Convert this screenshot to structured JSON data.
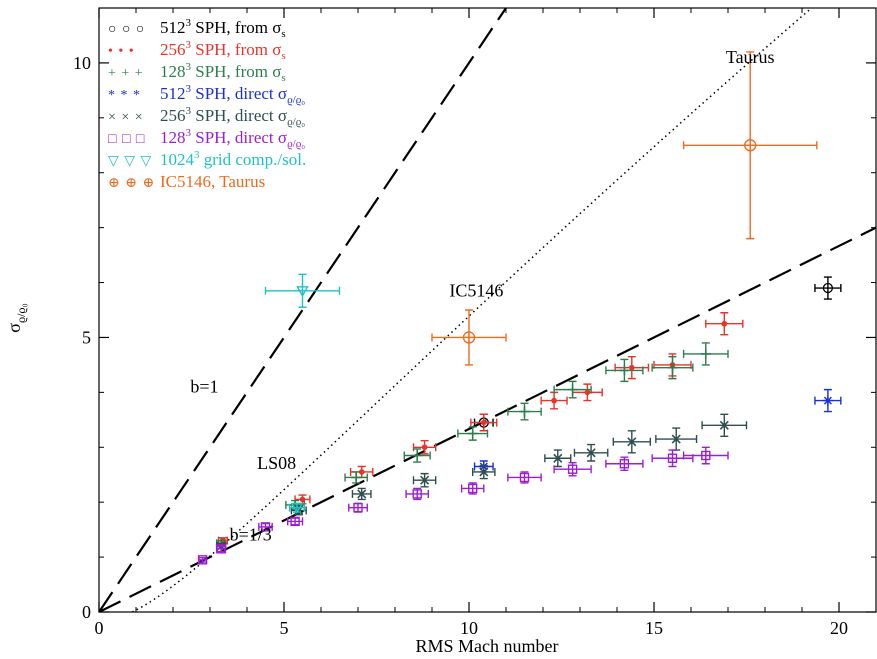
{
  "chart_data": {
    "type": "scatter",
    "xlabel": "RMS Mach number",
    "ylabel": "σ",
    "ylabel_sub": "ϱ/ϱ₀",
    "xlim": [
      0,
      21
    ],
    "ylim": [
      0,
      11
    ],
    "x_ticks": [
      0,
      5,
      10,
      15,
      20
    ],
    "y_ticks": [
      0,
      5,
      10
    ],
    "x_tick_labels": [
      "0",
      "5",
      "10",
      "15",
      "20"
    ],
    "y_tick_labels": [
      "0",
      "5",
      "10"
    ],
    "grid": false,
    "legend_position": "top-left",
    "legend": [
      {
        "symbols": "○ ○ ○",
        "text": "512",
        "sup": "3",
        "text2": " SPH, from σ",
        "sub": "s",
        "color": "#000000"
      },
      {
        "symbols": "• • •",
        "text": "256",
        "sup": "3",
        "text2": " SPH, from σ",
        "sub": "s",
        "color": "#e8322a"
      },
      {
        "symbols": "+ + +",
        "text": "128",
        "sup": "3",
        "text2": " SPH, from σ",
        "sub": "s",
        "color": "#2e7d4f"
      },
      {
        "symbols": "* * *",
        "text": "512",
        "sup": "3",
        "text2": " SPH, direct σ",
        "sub": "ϱ/ϱ₀",
        "color": "#1a2fd6"
      },
      {
        "symbols": "× × ×",
        "text": "256",
        "sup": "3",
        "text2": " SPH, direct σ",
        "sub": "ϱ/ϱ₀",
        "color": "#2f4f4f"
      },
      {
        "symbols": "□ □ □",
        "text": "128",
        "sup": "3",
        "text2": " SPH, direct σ",
        "sub": "ϱ/ϱ₀",
        "color": "#9a1fd1"
      },
      {
        "symbols": "▽ ▽ ▽",
        "text": "1024",
        "sup": "3",
        "text2": " grid comp./sol.",
        "sub": "",
        "color": "#1fc2c2"
      },
      {
        "symbols": "⊕ ⊕ ⊕",
        "text": "IC5146, Taurus",
        "sup": "",
        "text2": "",
        "sub": "",
        "color": "#f06a1e"
      }
    ],
    "annotations": [
      {
        "text": "Taurus",
        "x": 17.6,
        "y": 10.0
      },
      {
        "text": "IC5146",
        "x": 10.2,
        "y": 5.75
      },
      {
        "text": "b=1",
        "x": 2.85,
        "y": 4.0
      },
      {
        "text": "LS08",
        "x": 4.8,
        "y": 2.6
      },
      {
        "text": "b=1/3",
        "x": 4.1,
        "y": 1.3
      }
    ],
    "lines": [
      {
        "name": "b=1",
        "style": "long-dash",
        "slope": 1.0
      },
      {
        "name": "b=1/3",
        "style": "long-dash",
        "slope": 0.3333
      },
      {
        "name": "LS08",
        "style": "dotted",
        "function": "sqrt(ln(1+0.25*M^2))^2-like"
      }
    ],
    "series": [
      {
        "name": "512³ SPH, from σs",
        "marker": "circle",
        "color": "#000000",
        "points": [
          [
            19.7,
            5.9,
            0.35,
            0.2
          ],
          [
            10.4,
            3.45,
            0.25,
            0.15
          ]
        ]
      },
      {
        "name": "256³ SPH, from σs",
        "marker": "dot",
        "color": "#e8322a",
        "points": [
          [
            3.35,
            1.3,
            0.12,
            0.05
          ],
          [
            5.5,
            2.05,
            0.2,
            0.08
          ],
          [
            7.1,
            2.55,
            0.3,
            0.1
          ],
          [
            8.8,
            3.0,
            0.3,
            0.12
          ],
          [
            10.4,
            3.45,
            0.35,
            0.15
          ],
          [
            12.3,
            3.85,
            0.35,
            0.15
          ],
          [
            13.2,
            4.0,
            0.4,
            0.15
          ],
          [
            14.4,
            4.45,
            0.45,
            0.2
          ],
          [
            15.5,
            4.5,
            0.5,
            0.2
          ],
          [
            16.9,
            5.25,
            0.5,
            0.2
          ]
        ]
      },
      {
        "name": "128³ SPH, from σs",
        "marker": "plus",
        "color": "#2e7d4f",
        "points": [
          [
            3.3,
            1.25,
            0.12,
            0.05
          ],
          [
            5.3,
            1.95,
            0.25,
            0.08
          ],
          [
            6.95,
            2.45,
            0.3,
            0.1
          ],
          [
            8.6,
            2.85,
            0.35,
            0.12
          ],
          [
            10.1,
            3.25,
            0.4,
            0.12
          ],
          [
            11.5,
            3.65,
            0.45,
            0.15
          ],
          [
            12.8,
            4.05,
            0.5,
            0.15
          ],
          [
            14.2,
            4.4,
            0.5,
            0.2
          ],
          [
            15.5,
            4.45,
            0.55,
            0.2
          ],
          [
            16.4,
            4.7,
            0.6,
            0.2
          ]
        ]
      },
      {
        "name": "512³ SPH, direct σϱ/ϱ₀",
        "marker": "asterisk",
        "color": "#1a2fd6",
        "points": [
          [
            10.4,
            2.65,
            0.25,
            0.1
          ],
          [
            19.7,
            3.85,
            0.35,
            0.2
          ]
        ]
      },
      {
        "name": "256³ SPH, direct σϱ/ϱ₀",
        "marker": "cross",
        "color": "#2f4f4f",
        "points": [
          [
            3.3,
            1.2,
            0.12,
            0.05
          ],
          [
            5.4,
            1.85,
            0.2,
            0.08
          ],
          [
            7.1,
            2.15,
            0.25,
            0.1
          ],
          [
            8.8,
            2.4,
            0.3,
            0.12
          ],
          [
            10.4,
            2.55,
            0.3,
            0.12
          ],
          [
            12.4,
            2.8,
            0.35,
            0.15
          ],
          [
            13.3,
            2.9,
            0.45,
            0.15
          ],
          [
            14.4,
            3.1,
            0.5,
            0.2
          ],
          [
            15.6,
            3.15,
            0.55,
            0.2
          ],
          [
            16.9,
            3.4,
            0.6,
            0.2
          ]
        ]
      },
      {
        "name": "128³ SPH, direct σϱ/ϱ₀",
        "marker": "square",
        "color": "#9a1fd1",
        "points": [
          [
            2.8,
            0.95,
            0.1,
            0.04
          ],
          [
            3.3,
            1.15,
            0.12,
            0.05
          ],
          [
            4.5,
            1.55,
            0.18,
            0.06
          ],
          [
            5.3,
            1.65,
            0.2,
            0.06
          ],
          [
            7.0,
            1.9,
            0.25,
            0.08
          ],
          [
            8.6,
            2.15,
            0.3,
            0.1
          ],
          [
            10.1,
            2.25,
            0.3,
            0.1
          ],
          [
            11.5,
            2.45,
            0.45,
            0.1
          ],
          [
            12.8,
            2.6,
            0.5,
            0.12
          ],
          [
            14.2,
            2.7,
            0.5,
            0.12
          ],
          [
            15.5,
            2.8,
            0.55,
            0.15
          ],
          [
            16.4,
            2.85,
            0.6,
            0.15
          ]
        ]
      },
      {
        "name": "1024³ grid comp./sol.",
        "marker": "triangle",
        "color": "#1fc2c2",
        "points": [
          [
            5.5,
            5.85,
            1.0,
            0.3
          ],
          [
            5.35,
            1.9,
            0.2,
            0.08
          ]
        ]
      },
      {
        "name": "IC5146, Taurus",
        "marker": "circleplus",
        "color": "#f06a1e",
        "points": [
          [
            10.0,
            5.0,
            1.0,
            0.5
          ],
          [
            17.6,
            8.5,
            1.8,
            1.7
          ]
        ]
      }
    ]
  }
}
